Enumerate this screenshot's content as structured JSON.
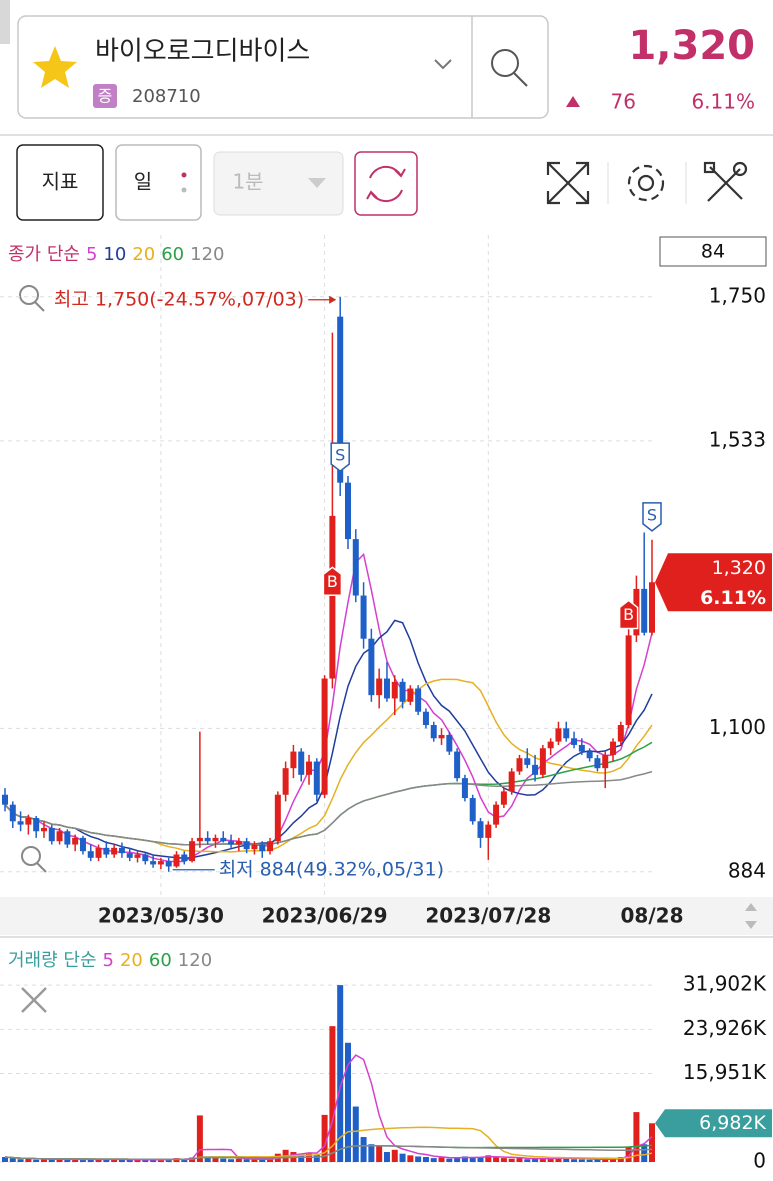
{
  "header": {
    "name": "바이오로그디바이스",
    "market": "증",
    "code": "208710",
    "price": "1,320",
    "change": "76",
    "change_pct": "6.11%"
  },
  "toolbar": {
    "indicator": "지표",
    "period": "일",
    "interval": "1분"
  },
  "chart_data": [
    {
      "type": "candlestick",
      "title": "종가 단순",
      "count": 84,
      "moving_averages": [
        {
          "period": 5,
          "color": "#d63fcf"
        },
        {
          "period": 10,
          "color": "#1f3d9c"
        },
        {
          "period": 20,
          "color": "#e6b020"
        },
        {
          "period": 60,
          "color": "#2aa146"
        },
        {
          "period": 120,
          "color": "#888888"
        }
      ],
      "up_color": "#e0201c",
      "down_color": "#1e5fc8",
      "grid": true,
      "categories": [
        null,
        null,
        null,
        null,
        null,
        null,
        null,
        null,
        null,
        null,
        null,
        null,
        null,
        null,
        null,
        null,
        null,
        null,
        null,
        null,
        "2023/05/30",
        null,
        null,
        null,
        null,
        null,
        null,
        null,
        null,
        null,
        null,
        null,
        null,
        null,
        null,
        null,
        null,
        null,
        null,
        null,
        null,
        "2023/06/29",
        null,
        null,
        null,
        null,
        null,
        null,
        null,
        null,
        null,
        null,
        null,
        null,
        null,
        null,
        null,
        null,
        null,
        null,
        null,
        null,
        "2023/07/28",
        null,
        null,
        null,
        null,
        null,
        null,
        null,
        null,
        null,
        null,
        null,
        null,
        null,
        null,
        null,
        null,
        null,
        null,
        null,
        null,
        "08/28"
      ],
      "ohlc": [
        [
          1000,
          1010,
          975,
          985
        ],
        [
          985,
          990,
          950,
          960
        ],
        [
          960,
          975,
          945,
          955
        ],
        [
          955,
          970,
          940,
          965
        ],
        [
          965,
          968,
          935,
          945
        ],
        [
          945,
          960,
          935,
          950
        ],
        [
          950,
          955,
          925,
          930
        ],
        [
          930,
          950,
          925,
          945
        ],
        [
          945,
          948,
          920,
          925
        ],
        [
          925,
          940,
          915,
          935
        ],
        [
          935,
          938,
          910,
          915
        ],
        [
          915,
          925,
          900,
          905
        ],
        [
          905,
          925,
          900,
          920
        ],
        [
          920,
          930,
          905,
          910
        ],
        [
          910,
          925,
          905,
          920
        ],
        [
          920,
          928,
          905,
          912
        ],
        [
          912,
          920,
          900,
          905
        ],
        [
          905,
          915,
          898,
          910
        ],
        [
          910,
          912,
          895,
          900
        ],
        [
          900,
          910,
          890,
          895
        ],
        [
          895,
          905,
          888,
          900
        ],
        [
          900,
          905,
          884,
          892
        ],
        [
          892,
          915,
          890,
          910
        ],
        [
          910,
          915,
          895,
          900
        ],
        [
          900,
          935,
          898,
          930
        ],
        [
          930,
          1095,
          920,
          935
        ],
        [
          935,
          945,
          925,
          930
        ],
        [
          930,
          940,
          920,
          935
        ],
        [
          935,
          945,
          928,
          930
        ],
        [
          930,
          940,
          920,
          925
        ],
        [
          925,
          935,
          915,
          930
        ],
        [
          930,
          935,
          912,
          918
        ],
        [
          918,
          930,
          910,
          925
        ],
        [
          925,
          930,
          905,
          915
        ],
        [
          915,
          935,
          910,
          930
        ],
        [
          930,
          1005,
          925,
          1000
        ],
        [
          1000,
          1050,
          990,
          1040
        ],
        [
          1040,
          1075,
          1025,
          1065
        ],
        [
          1065,
          1070,
          1020,
          1030
        ],
        [
          1030,
          1060,
          1015,
          1050
        ],
        [
          1050,
          1055,
          990,
          1000
        ],
        [
          1000,
          1180,
          995,
          1175
        ],
        [
          1175,
          1696,
          1160,
          1420
        ],
        [
          1720,
          1750,
          1450,
          1470
        ],
        [
          1470,
          1480,
          1370,
          1385
        ],
        [
          1385,
          1400,
          1290,
          1300
        ],
        [
          1300,
          1320,
          1220,
          1235
        ],
        [
          1235,
          1250,
          1140,
          1150
        ],
        [
          1150,
          1190,
          1130,
          1175
        ],
        [
          1175,
          1200,
          1140,
          1145
        ],
        [
          1145,
          1180,
          1120,
          1170
        ],
        [
          1170,
          1175,
          1130,
          1140
        ],
        [
          1140,
          1165,
          1135,
          1160
        ],
        [
          1160,
          1165,
          1120,
          1125
        ],
        [
          1125,
          1130,
          1100,
          1105
        ],
        [
          1105,
          1110,
          1080,
          1085
        ],
        [
          1085,
          1100,
          1075,
          1090
        ],
        [
          1090,
          1095,
          1060,
          1065
        ],
        [
          1065,
          1070,
          1020,
          1025
        ],
        [
          1025,
          1030,
          990,
          995
        ],
        [
          995,
          1000,
          955,
          960
        ],
        [
          960,
          965,
          920,
          935
        ],
        [
          935,
          960,
          902,
          955
        ],
        [
          955,
          990,
          950,
          985
        ],
        [
          985,
          1010,
          980,
          1005
        ],
        [
          1005,
          1040,
          1000,
          1035
        ],
        [
          1035,
          1060,
          1030,
          1055
        ],
        [
          1055,
          1070,
          1040,
          1045
        ],
        [
          1045,
          1060,
          1020,
          1030
        ],
        [
          1030,
          1075,
          1025,
          1070
        ],
        [
          1070,
          1085,
          1060,
          1080
        ],
        [
          1080,
          1110,
          1075,
          1100
        ],
        [
          1100,
          1110,
          1080,
          1085
        ],
        [
          1085,
          1095,
          1070,
          1075
        ],
        [
          1075,
          1085,
          1060,
          1065
        ],
        [
          1065,
          1070,
          1050,
          1055
        ],
        [
          1055,
          1060,
          1035,
          1040
        ],
        [
          1040,
          1065,
          1010,
          1060
        ],
        [
          1060,
          1085,
          1050,
          1080
        ],
        [
          1080,
          1110,
          1075,
          1105
        ],
        [
          1105,
          1250,
          1100,
          1240
        ],
        [
          1240,
          1330,
          1230,
          1310
        ],
        [
          1310,
          1395,
          1240,
          1244
        ],
        [
          1244,
          1384,
          1240,
          1320
        ]
      ],
      "ylim": [
        849,
        1843
      ],
      "yticks": [
        {
          "value": 1750,
          "label": "1,750"
        },
        {
          "value": 1533,
          "label": "1,533"
        },
        {
          "value": 1100,
          "label": "1,100"
        },
        884
      ],
      "price_tag": {
        "value": 1320,
        "label": "1,320",
        "pct": "6.11%"
      },
      "annotations": [
        {
          "text": "최고 1,750(-24.57%,07/03)",
          "index": 43,
          "value": 1750,
          "color": "#d02a20"
        },
        {
          "text": "최저 884(49.32%,05/31)",
          "index": 21,
          "value": 884,
          "color": "#2a5fb0"
        }
      ],
      "signals": [
        {
          "index": 42,
          "label": "B",
          "value": 1320
        },
        {
          "index": 43,
          "label": "S",
          "value": 1510
        },
        {
          "index": 80,
          "label": "B",
          "value": 1270
        },
        {
          "index": 83,
          "label": "S",
          "value": 1420
        }
      ]
    },
    {
      "type": "bar",
      "title": "거래량 단순",
      "moving_averages": [
        {
          "period": 5,
          "color": "#d63fcf"
        },
        {
          "period": 20,
          "color": "#e6b020"
        },
        {
          "period": 60,
          "color": "#2aa146"
        },
        {
          "period": 120,
          "color": "#888888"
        }
      ],
      "values": [
        900,
        700,
        500,
        600,
        400,
        500,
        450,
        600,
        400,
        500,
        350,
        600,
        400,
        500,
        450,
        400,
        380,
        500,
        350,
        420,
        380,
        600,
        700,
        500,
        800,
        8400,
        900,
        700,
        600,
        500,
        600,
        450,
        500,
        400,
        500,
        1500,
        2200,
        1800,
        1200,
        1500,
        1300,
        8500,
        24500,
        31902,
        21500,
        10000,
        4500,
        3200,
        3000,
        1800,
        2200,
        1500,
        1200,
        1000,
        900,
        700,
        800,
        600,
        900,
        1000,
        800,
        900,
        1200,
        800,
        700,
        600,
        700,
        500,
        600,
        700,
        600,
        900,
        700,
        500,
        450,
        400,
        500,
        700,
        600,
        900,
        2800,
        9000,
        3200,
        6982
      ],
      "ylim": [
        0,
        33725
      ],
      "yticks": [
        {
          "value": 31902,
          "label": "31,902K"
        },
        {
          "value": 23926,
          "label": "23,926K"
        },
        {
          "value": 15951,
          "label": "15,951K"
        },
        0
      ],
      "price_tag": {
        "value": 6982,
        "label": "6,982K"
      }
    }
  ]
}
